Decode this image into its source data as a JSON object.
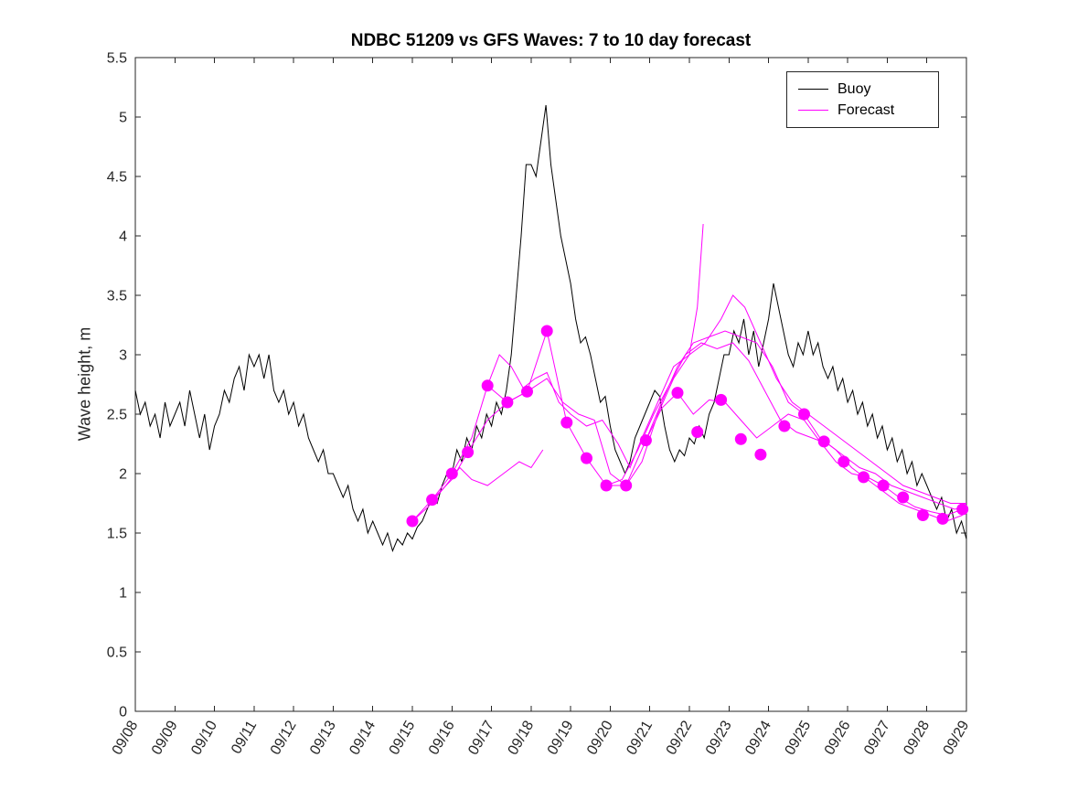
{
  "figure": {
    "title": "NDBC 51209 vs GFS Waves: 7 to 10 day forecast",
    "ylabel": "Wave height, m",
    "legend": [
      {
        "label": "Buoy",
        "color": "#000000"
      },
      {
        "label": "Forecast",
        "color": "#ff00ff"
      }
    ]
  },
  "chart_data": {
    "type": "line",
    "title": "NDBC 51209 vs GFS Waves: 7 to 10 day forecast",
    "xlabel": "",
    "ylabel": "Wave height, m",
    "ylim": [
      0,
      5.5
    ],
    "ytick_labels": [
      "0",
      "0.5",
      "1",
      "1.5",
      "2",
      "2.5",
      "3",
      "3.5",
      "4",
      "4.5",
      "5",
      "5.5"
    ],
    "xlim_days": [
      0,
      21
    ],
    "x_tick_labels": [
      "09/08",
      "09/09",
      "09/10",
      "09/11",
      "09/12",
      "09/13",
      "09/14",
      "09/15",
      "09/16",
      "09/17",
      "09/18",
      "09/19",
      "09/20",
      "09/21",
      "09/22",
      "09/23",
      "09/24",
      "09/25",
      "09/26",
      "09/27",
      "09/28",
      "09/29"
    ],
    "grid": false,
    "legend_position": "top-right",
    "axis_color": "#262626",
    "buoy_series": {
      "name": "Buoy",
      "color": "#000000",
      "start_day": 0,
      "step_days": 0.125,
      "values": [
        2.7,
        2.5,
        2.6,
        2.4,
        2.5,
        2.3,
        2.6,
        2.4,
        2.5,
        2.6,
        2.4,
        2.7,
        2.5,
        2.3,
        2.5,
        2.2,
        2.4,
        2.5,
        2.7,
        2.6,
        2.8,
        2.9,
        2.7,
        3.0,
        2.9,
        3.0,
        2.8,
        3.0,
        2.7,
        2.6,
        2.7,
        2.5,
        2.6,
        2.4,
        2.5,
        2.3,
        2.2,
        2.1,
        2.2,
        2.0,
        2.0,
        1.9,
        1.8,
        1.9,
        1.7,
        1.6,
        1.7,
        1.5,
        1.6,
        1.5,
        1.4,
        1.5,
        1.35,
        1.45,
        1.4,
        1.5,
        1.45,
        1.55,
        1.6,
        1.7,
        1.8,
        1.75,
        1.9,
        2.0,
        2.0,
        2.2,
        2.1,
        2.3,
        2.2,
        2.4,
        2.3,
        2.5,
        2.4,
        2.6,
        2.5,
        2.7,
        3.0,
        3.5,
        4.0,
        4.6,
        4.6,
        4.5,
        4.8,
        5.1,
        4.6,
        4.3,
        4.0,
        3.8,
        3.6,
        3.3,
        3.1,
        3.15,
        3.0,
        2.8,
        2.6,
        2.65,
        2.4,
        2.2,
        2.1,
        2.0,
        2.1,
        2.3,
        2.4,
        2.5,
        2.6,
        2.7,
        2.65,
        2.4,
        2.2,
        2.1,
        2.2,
        2.15,
        2.3,
        2.25,
        2.4,
        2.3,
        2.5,
        2.6,
        2.8,
        3.0,
        3.0,
        3.2,
        3.1,
        3.3,
        3.0,
        3.2,
        2.9,
        3.1,
        3.3,
        3.6,
        3.4,
        3.2,
        3.0,
        2.9,
        3.1,
        3.0,
        3.2,
        3.0,
        3.1,
        2.9,
        2.8,
        2.9,
        2.7,
        2.8,
        2.6,
        2.7,
        2.5,
        2.6,
        2.4,
        2.5,
        2.3,
        2.4,
        2.2,
        2.3,
        2.1,
        2.2,
        2.0,
        2.1,
        1.9,
        2.0,
        1.9,
        1.8,
        1.7,
        1.8,
        1.6,
        1.7,
        1.5,
        1.6,
        1.45
      ]
    },
    "forecast_series": [
      {
        "name": "Forecast run 1",
        "color": "#ff00ff",
        "points": [
          [
            7.0,
            1.6
          ],
          [
            7.4,
            1.72
          ],
          [
            7.8,
            1.88
          ],
          [
            8.2,
            2.05
          ],
          [
            8.5,
            1.95
          ],
          [
            8.9,
            1.9
          ],
          [
            9.3,
            2.0
          ],
          [
            9.7,
            2.1
          ],
          [
            10.0,
            2.05
          ],
          [
            10.3,
            2.2
          ]
        ]
      },
      {
        "name": "Forecast run 2",
        "color": "#ff00ff",
        "points": [
          [
            7.0,
            1.6
          ],
          [
            7.5,
            1.78
          ],
          [
            8.0,
            2.0
          ],
          [
            8.5,
            2.3
          ],
          [
            8.9,
            2.74
          ],
          [
            9.2,
            3.0
          ],
          [
            9.5,
            2.9
          ],
          [
            9.8,
            2.72
          ],
          [
            10.1,
            2.8
          ],
          [
            10.4,
            2.85
          ],
          [
            10.7,
            2.6
          ],
          [
            11.0,
            2.5
          ],
          [
            11.4,
            2.4
          ],
          [
            11.8,
            2.45
          ],
          [
            12.2,
            2.25
          ],
          [
            12.5,
            2.05
          ],
          [
            12.8,
            2.3
          ],
          [
            13.2,
            2.6
          ],
          [
            13.6,
            2.9
          ],
          [
            14.0,
            3.0
          ],
          [
            14.2,
            3.4
          ],
          [
            14.35,
            4.1
          ]
        ]
      },
      {
        "name": "Forecast run 3",
        "color": "#ff00ff",
        "points": [
          [
            7.5,
            1.78
          ],
          [
            8.0,
            1.95
          ],
          [
            8.4,
            2.18
          ],
          [
            8.9,
            2.45
          ],
          [
            9.4,
            2.6
          ],
          [
            9.9,
            2.69
          ],
          [
            10.4,
            2.8
          ],
          [
            10.8,
            2.6
          ],
          [
            11.2,
            2.5
          ],
          [
            11.6,
            2.45
          ],
          [
            12.0,
            2.0
          ],
          [
            12.4,
            1.9
          ],
          [
            12.8,
            2.1
          ],
          [
            13.2,
            2.5
          ],
          [
            13.6,
            2.8
          ],
          [
            14.0,
            3.0
          ],
          [
            14.4,
            3.1
          ],
          [
            14.8,
            3.3
          ],
          [
            15.1,
            3.5
          ],
          [
            15.4,
            3.4
          ],
          [
            15.8,
            3.1
          ],
          [
            16.2,
            2.8
          ],
          [
            16.6,
            2.6
          ],
          [
            17.0,
            2.5
          ],
          [
            17.4,
            2.4
          ],
          [
            17.8,
            2.3
          ],
          [
            18.2,
            2.2
          ],
          [
            18.6,
            2.1
          ],
          [
            19.0,
            2.0
          ],
          [
            19.4,
            1.9
          ],
          [
            19.8,
            1.85
          ],
          [
            20.2,
            1.8
          ],
          [
            20.6,
            1.75
          ],
          [
            21.0,
            1.75
          ]
        ]
      },
      {
        "name": "Forecast run 4",
        "color": "#ff00ff",
        "points": [
          [
            8.9,
            2.74
          ],
          [
            9.4,
            2.6
          ],
          [
            9.9,
            2.69
          ],
          [
            10.4,
            3.2
          ],
          [
            10.9,
            2.43
          ],
          [
            11.4,
            2.13
          ],
          [
            11.9,
            1.9
          ],
          [
            12.4,
            1.9
          ],
          [
            12.9,
            2.28
          ],
          [
            13.3,
            2.6
          ],
          [
            13.7,
            2.9
          ],
          [
            14.1,
            3.1
          ],
          [
            14.5,
            3.15
          ],
          [
            14.9,
            3.2
          ],
          [
            15.3,
            3.15
          ],
          [
            15.7,
            3.1
          ],
          [
            16.1,
            2.9
          ],
          [
            16.5,
            2.6
          ],
          [
            16.9,
            2.5
          ],
          [
            17.3,
            2.3
          ],
          [
            17.7,
            2.2
          ],
          [
            18.1,
            2.05
          ],
          [
            18.5,
            1.95
          ],
          [
            18.9,
            1.85
          ],
          [
            19.3,
            1.75
          ],
          [
            19.7,
            1.7
          ],
          [
            20.1,
            1.65
          ],
          [
            20.5,
            1.6
          ],
          [
            20.9,
            1.65
          ]
        ]
      },
      {
        "name": "Forecast run 5",
        "color": "#ff00ff",
        "points": [
          [
            11.9,
            1.9
          ],
          [
            12.3,
            1.95
          ],
          [
            12.7,
            2.2
          ],
          [
            13.1,
            2.5
          ],
          [
            13.5,
            2.75
          ],
          [
            13.9,
            3.0
          ],
          [
            14.3,
            3.1
          ],
          [
            14.7,
            3.05
          ],
          [
            15.1,
            3.1
          ],
          [
            15.5,
            2.95
          ],
          [
            15.9,
            2.7
          ],
          [
            16.3,
            2.45
          ],
          [
            16.7,
            2.35
          ],
          [
            17.1,
            2.3
          ],
          [
            17.5,
            2.25
          ],
          [
            17.9,
            2.15
          ],
          [
            18.3,
            2.05
          ],
          [
            18.7,
            2.0
          ],
          [
            19.1,
            1.9
          ],
          [
            19.5,
            1.85
          ],
          [
            19.9,
            1.8
          ],
          [
            20.3,
            1.75
          ],
          [
            20.7,
            1.7
          ],
          [
            21.0,
            1.72
          ]
        ]
      },
      {
        "name": "Forecast run 6",
        "color": "#ff00ff",
        "points": [
          [
            12.9,
            2.28
          ],
          [
            13.3,
            2.55
          ],
          [
            13.7,
            2.68
          ],
          [
            14.1,
            2.5
          ],
          [
            14.5,
            2.62
          ],
          [
            14.9,
            2.6
          ],
          [
            15.3,
            2.45
          ],
          [
            15.7,
            2.3
          ],
          [
            16.1,
            2.4
          ],
          [
            16.5,
            2.5
          ],
          [
            16.9,
            2.45
          ],
          [
            17.3,
            2.27
          ],
          [
            17.7,
            2.1
          ],
          [
            18.1,
            2.0
          ],
          [
            18.5,
            1.97
          ],
          [
            18.9,
            1.9
          ],
          [
            19.3,
            1.8
          ],
          [
            19.7,
            1.72
          ],
          [
            20.1,
            1.68
          ],
          [
            20.5,
            1.65
          ],
          [
            20.9,
            1.7
          ]
        ]
      }
    ],
    "markers": {
      "name": "Forecast points",
      "color": "#ff00ff",
      "points": [
        [
          7.0,
          1.6
        ],
        [
          7.5,
          1.78
        ],
        [
          8.0,
          2.0
        ],
        [
          8.4,
          2.18
        ],
        [
          8.9,
          2.74
        ],
        [
          9.4,
          2.6
        ],
        [
          9.9,
          2.69
        ],
        [
          10.4,
          3.2
        ],
        [
          10.9,
          2.43
        ],
        [
          11.4,
          2.13
        ],
        [
          11.9,
          1.9
        ],
        [
          12.4,
          1.9
        ],
        [
          12.9,
          2.28
        ],
        [
          13.7,
          2.68
        ],
        [
          14.2,
          2.35
        ],
        [
          14.8,
          2.62
        ],
        [
          15.3,
          2.29
        ],
        [
          15.8,
          2.16
        ],
        [
          16.4,
          2.4
        ],
        [
          16.9,
          2.5
        ],
        [
          17.4,
          2.27
        ],
        [
          17.9,
          2.1
        ],
        [
          18.4,
          1.97
        ],
        [
          18.9,
          1.9
        ],
        [
          19.4,
          1.8
        ],
        [
          19.9,
          1.65
        ],
        [
          20.4,
          1.62
        ],
        [
          20.9,
          1.7
        ]
      ]
    }
  }
}
